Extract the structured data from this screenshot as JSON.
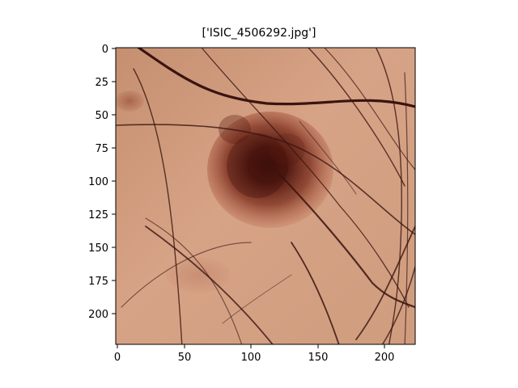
{
  "figure": {
    "title": "['ISIC_4506292.jpg']",
    "image_subject": "dermoscopy skin lesion with hairs",
    "x_ticks": [
      "0",
      "50",
      "100",
      "150",
      "200"
    ],
    "y_ticks": [
      "0",
      "25",
      "50",
      "75",
      "100",
      "125",
      "150",
      "175",
      "200"
    ],
    "colors": {
      "skin_base": "#c88f6f",
      "skin_light": "#d7a386",
      "lesion_dark": "#4a120c",
      "lesion_mid": "#7a2b1b",
      "hair": "#3a140f"
    }
  }
}
